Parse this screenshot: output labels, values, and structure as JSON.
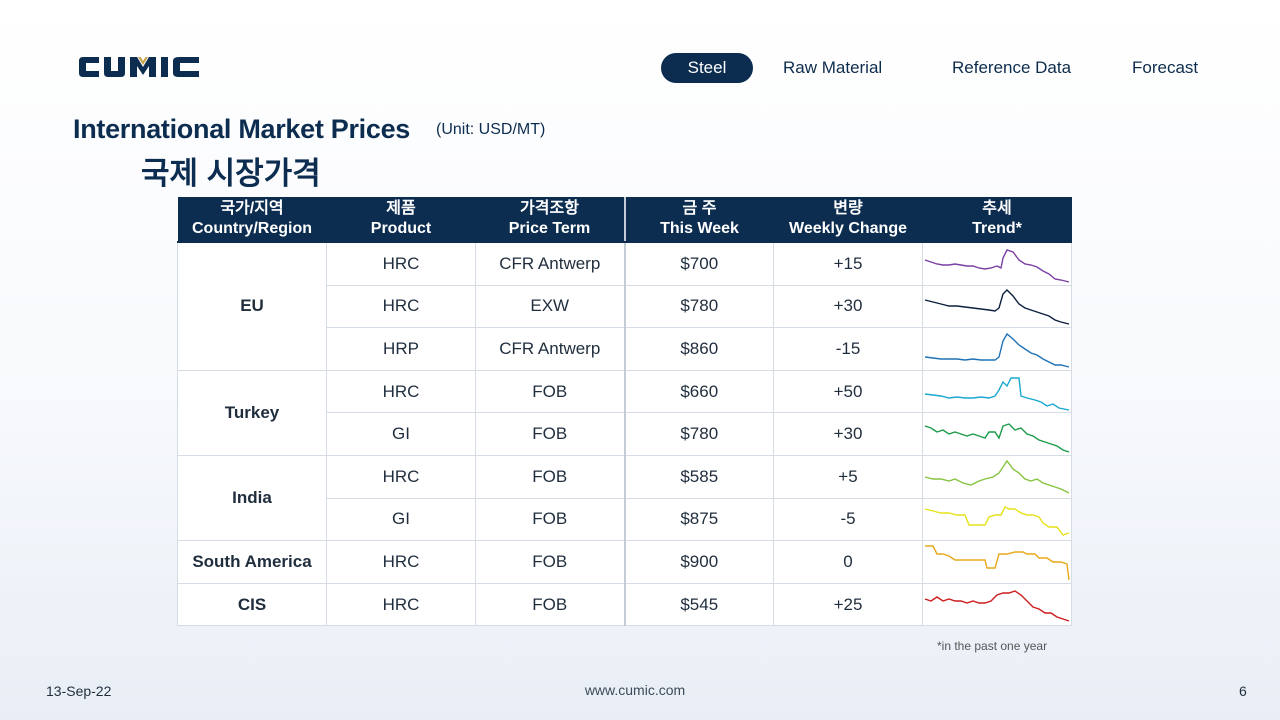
{
  "brand": {
    "logo_text": "CUMIC",
    "colors": {
      "navy": "#0c2d50",
      "gold": "#c9a24a"
    }
  },
  "nav": {
    "items": [
      {
        "label": "Steel",
        "active": true
      },
      {
        "label": "Raw Material",
        "active": false
      },
      {
        "label": "Reference Data",
        "active": false
      },
      {
        "label": "Forecast",
        "active": false
      }
    ]
  },
  "title": {
    "en": "International Market Prices",
    "unit": "(Unit: USD/MT)",
    "ko": "국제 시장가격"
  },
  "table": {
    "headers": [
      {
        "ko": "국가/지역",
        "en": "Country/Region"
      },
      {
        "ko": "제품",
        "en": "Product"
      },
      {
        "ko": "가격조항",
        "en": "Price Term"
      },
      {
        "ko": "금 주",
        "en": "This Week"
      },
      {
        "ko": "변량",
        "en": "Weekly Change"
      },
      {
        "ko": "추세",
        "en": "Trend*"
      }
    ],
    "regions": [
      "EU",
      "Turkey",
      "India",
      "South America",
      "CIS"
    ],
    "rows": [
      {
        "product": "HRC",
        "term": "CFR Antwerp",
        "price": "$700",
        "change": "+15",
        "trend_color": "#7b3fa5"
      },
      {
        "product": "HRC",
        "term": "EXW",
        "price": "$780",
        "change": "+30",
        "trend_color": "#0e1f3e"
      },
      {
        "product": "HRP",
        "term": "CFR Antwerp",
        "price": "$860",
        "change": "-15",
        "trend_color": "#1f72b5"
      },
      {
        "product": "HRC",
        "term": "FOB",
        "price": "$660",
        "change": "+50",
        "trend_color": "#1aa8d2"
      },
      {
        "product": "GI",
        "term": "FOB",
        "price": "$780",
        "change": "+30",
        "trend_color": "#1b9a4a"
      },
      {
        "product": "HRC",
        "term": "FOB",
        "price": "$585",
        "change": "+5",
        "trend_color": "#86c440"
      },
      {
        "product": "GI",
        "term": "FOB",
        "price": "$875",
        "change": "-5",
        "trend_color": "#e6e21a"
      },
      {
        "product": "HRC",
        "term": "FOB",
        "price": "$900",
        "change": "0",
        "trend_color": "#e8a81a"
      },
      {
        "product": "HRC",
        "term": "FOB",
        "price": "$545",
        "change": "+25",
        "trend_color": "#cc1b1b"
      }
    ]
  },
  "footnote": "*in the past one year",
  "footer": {
    "date": "13-Sep-22",
    "url": "www.cumic.com",
    "page": "6"
  }
}
